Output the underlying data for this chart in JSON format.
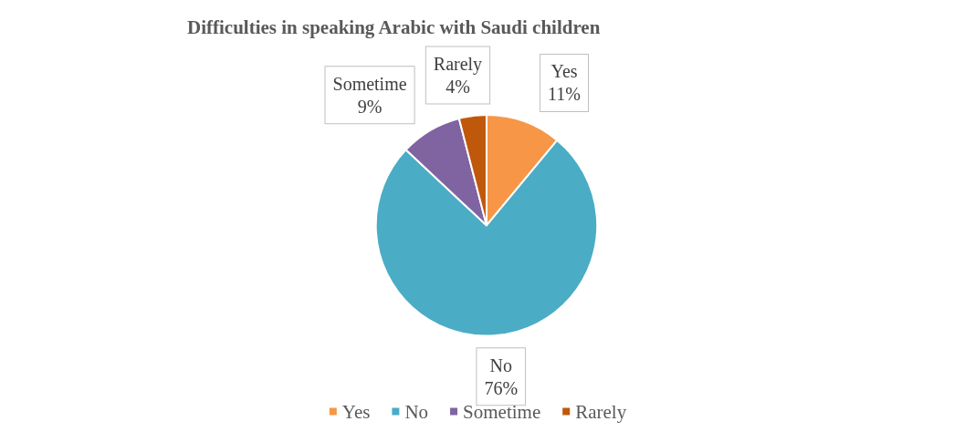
{
  "chart_data": {
    "type": "pie",
    "title": "Difficulties in speaking Arabic with Saudi children",
    "categories": [
      "Yes",
      "No",
      "Sometime",
      "Rarely"
    ],
    "values": [
      11,
      76,
      9,
      4
    ],
    "value_labels": [
      "11%",
      "76%",
      "9%",
      "4%"
    ],
    "colors": [
      "#f79646",
      "#4bacc6",
      "#8064a2",
      "#c0580c"
    ],
    "legend": "bottom"
  }
}
